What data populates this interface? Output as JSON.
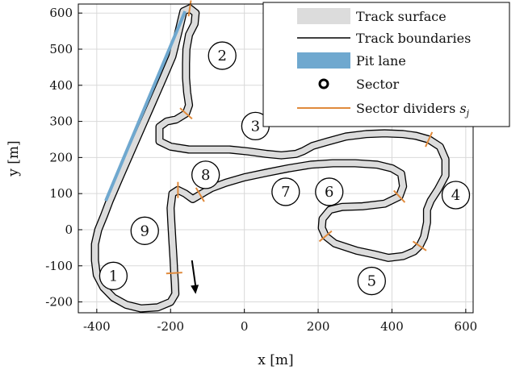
{
  "chart_data": {
    "type": "line",
    "xlabel": "x [m]",
    "ylabel": "y [m]",
    "xlim": [
      -450,
      620
    ],
    "ylim": [
      -230,
      625
    ],
    "xticks": [
      -400,
      -200,
      0,
      200,
      400,
      600
    ],
    "yticks": [
      600,
      500,
      400,
      300,
      200,
      100,
      0,
      -100,
      -200
    ],
    "xtick_labels": [
      "-400",
      "-200",
      "0",
      "200",
      "400",
      "600"
    ],
    "ytick_labels": [
      "600",
      "500",
      "400",
      "300",
      "200",
      "100",
      "0",
      "-100",
      "-200"
    ],
    "grid": true,
    "legend_position": "top-right",
    "legend": [
      {
        "label": "Track surface",
        "kind": "patch",
        "color": "#dcdcdc"
      },
      {
        "label": "Track boundaries",
        "kind": "line",
        "color": "#000000"
      },
      {
        "label": "Pit lane",
        "kind": "patch",
        "color": "#6fa8cf"
      },
      {
        "label": "Sector",
        "kind": "marker"
      },
      {
        "label": "Sector dividers s_j",
        "kind": "line",
        "color": "#e08a3c"
      }
    ],
    "track_centerline": [
      [
        -165,
        605
      ],
      [
        -148,
        613
      ],
      [
        -132,
        600
      ],
      [
        -135,
        570
      ],
      [
        -150,
        540
      ],
      [
        -157,
        500
      ],
      [
        -158,
        460
      ],
      [
        -158,
        420
      ],
      [
        -155,
        380
      ],
      [
        -150,
        345
      ],
      [
        -158,
        322
      ],
      [
        -185,
        305
      ],
      [
        -210,
        300
      ],
      [
        -230,
        285
      ],
      [
        -230,
        245
      ],
      [
        -200,
        230
      ],
      [
        -150,
        222
      ],
      [
        -100,
        222
      ],
      [
        -40,
        222
      ],
      [
        10,
        217
      ],
      [
        60,
        210
      ],
      [
        100,
        206
      ],
      [
        140,
        210
      ],
      [
        160,
        218
      ],
      [
        185,
        232
      ],
      [
        225,
        244
      ],
      [
        275,
        258
      ],
      [
        330,
        265
      ],
      [
        380,
        267
      ],
      [
        430,
        265
      ],
      [
        465,
        260
      ],
      [
        500,
        250
      ],
      [
        530,
        230
      ],
      [
        545,
        195
      ],
      [
        545,
        150
      ],
      [
        525,
        112
      ],
      [
        505,
        80
      ],
      [
        495,
        55
      ],
      [
        495,
        20
      ],
      [
        487,
        -20
      ],
      [
        475,
        -45
      ],
      [
        460,
        -60
      ],
      [
        430,
        -73
      ],
      [
        390,
        -78
      ],
      [
        350,
        -68
      ],
      [
        305,
        -58
      ],
      [
        275,
        -48
      ],
      [
        245,
        -38
      ],
      [
        220,
        -18
      ],
      [
        210,
        5
      ],
      [
        212,
        30
      ],
      [
        232,
        55
      ],
      [
        265,
        63
      ],
      [
        320,
        65
      ],
      [
        380,
        72
      ],
      [
        420,
        92
      ],
      [
        430,
        120
      ],
      [
        425,
        155
      ],
      [
        400,
        170
      ],
      [
        360,
        180
      ],
      [
        300,
        184
      ],
      [
        240,
        184
      ],
      [
        180,
        180
      ],
      [
        120,
        170
      ],
      [
        60,
        158
      ],
      [
        0,
        145
      ],
      [
        -50,
        130
      ],
      [
        -90,
        115
      ],
      [
        -120,
        97
      ],
      [
        -140,
        85
      ],
      [
        -160,
        100
      ],
      [
        -180,
        110
      ],
      [
        -195,
        100
      ],
      [
        -200,
        60
      ],
      [
        -198,
        20
      ],
      [
        -195,
        -30
      ],
      [
        -192,
        -80
      ],
      [
        -190,
        -120
      ],
      [
        -188,
        -150
      ],
      [
        -187,
        -178
      ],
      [
        -200,
        -200
      ],
      [
        -235,
        -215
      ],
      [
        -280,
        -218
      ],
      [
        -320,
        -208
      ],
      [
        -355,
        -188
      ],
      [
        -382,
        -160
      ],
      [
        -400,
        -125
      ],
      [
        -405,
        -85
      ],
      [
        -405,
        -40
      ],
      [
        -396,
        0
      ],
      [
        -380,
        40
      ],
      [
        -365,
        80
      ],
      [
        -340,
        140
      ],
      [
        -310,
        210
      ],
      [
        -280,
        280
      ],
      [
        -250,
        350
      ],
      [
        -220,
        420
      ],
      [
        -195,
        480
      ],
      [
        -178,
        550
      ],
      [
        -165,
        605
      ]
    ],
    "pit_lane": [
      [
        -380,
        80
      ],
      [
        -165,
        605
      ]
    ],
    "sector_dividers": [
      [
        -152,
        615
      ],
      [
        -157,
        325
      ],
      [
        488,
        258
      ],
      [
        422,
        95
      ],
      [
        478,
        -33
      ],
      [
        218,
        -20
      ],
      [
        -125,
        95
      ],
      [
        -183,
        118
      ],
      [
        -185,
        -128
      ]
    ],
    "sectors": [
      {
        "label": "1",
        "x": -355,
        "y": -128
      },
      {
        "label": "2",
        "x": -60,
        "y": 482
      },
      {
        "label": "3",
        "x": 30,
        "y": 287
      },
      {
        "label": "4",
        "x": 573,
        "y": 96
      },
      {
        "label": "5",
        "x": 345,
        "y": -142
      },
      {
        "label": "6",
        "x": 230,
        "y": 105
      },
      {
        "label": "7",
        "x": 112,
        "y": 105
      },
      {
        "label": "8",
        "x": -105,
        "y": 152
      },
      {
        "label": "9",
        "x": -270,
        "y": -3
      }
    ],
    "direction_arrow": [
      [
        -142,
        -85
      ],
      [
        -132,
        -178
      ]
    ]
  },
  "colors": {
    "track_surface": "#dcdcdc",
    "track_boundary": "#000000",
    "pit_lane": "#6fa8cf",
    "divider": "#e08a3c",
    "grid": "#d9d9d9"
  }
}
